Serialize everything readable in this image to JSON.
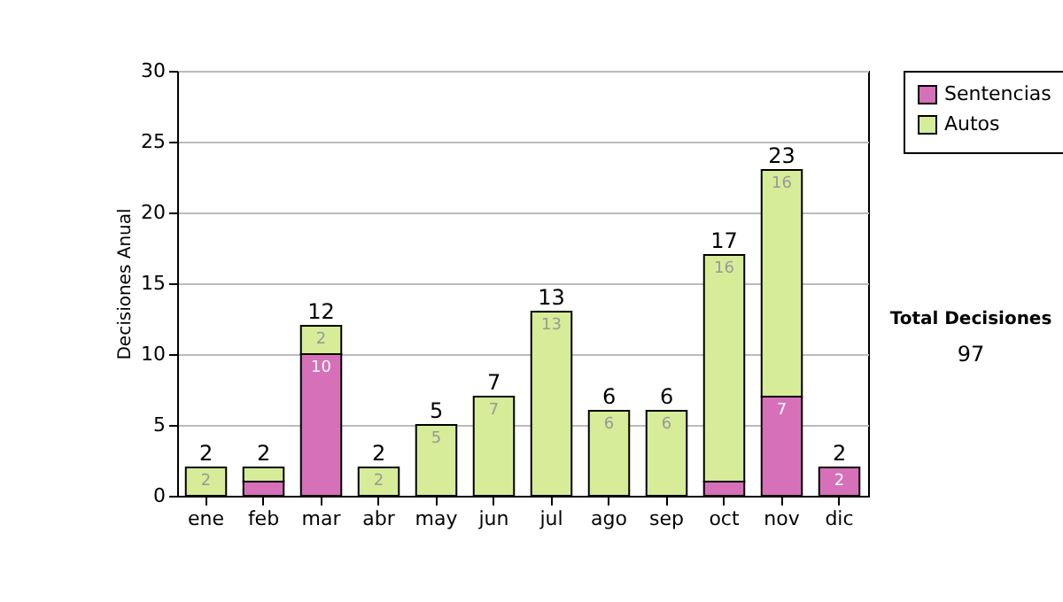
{
  "chart_data": {
    "type": "bar",
    "stacked": true,
    "ylabel": "Decisiones Anual",
    "categories": [
      "ene",
      "feb",
      "mar",
      "abr",
      "may",
      "jun",
      "jul",
      "ago",
      "sep",
      "oct",
      "nov",
      "dic"
    ],
    "series": [
      {
        "name": "Sentencias",
        "color": "#d670b8",
        "values": [
          0,
          1,
          10,
          0,
          0,
          0,
          0,
          0,
          0,
          1,
          7,
          2
        ],
        "value_labels": [
          null,
          null,
          "10",
          null,
          null,
          null,
          null,
          null,
          null,
          null,
          "7",
          "2"
        ]
      },
      {
        "name": "Autos",
        "color": "#d6ec98",
        "values": [
          2,
          1,
          2,
          2,
          5,
          7,
          13,
          6,
          6,
          16,
          16,
          0
        ],
        "value_labels": [
          "2",
          null,
          "2",
          "2",
          "5",
          "7",
          "13",
          "6",
          "6",
          "16",
          "16",
          null
        ]
      }
    ],
    "totals": [
      "2",
      "2",
      "12",
      "2",
      "5",
      "7",
      "13",
      "6",
      "6",
      "17",
      "23",
      "2"
    ],
    "ylim": [
      0,
      30
    ],
    "yticks": [
      0,
      5,
      10,
      15,
      20,
      25,
      30
    ],
    "grid": "y",
    "legend": "right",
    "annotations": [
      "Total Decisiones",
      "97"
    ]
  }
}
